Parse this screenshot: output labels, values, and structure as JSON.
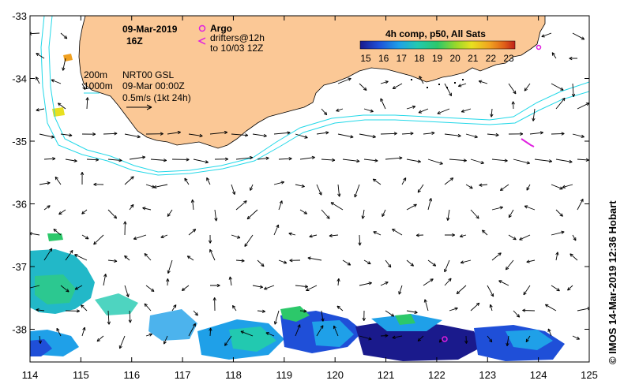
{
  "title": {
    "date": "09-Mar-2019",
    "time": "16Z"
  },
  "legend": {
    "argo_label": "Argo",
    "drifters_line1": "drifters@12h",
    "drifters_line2": "to 10/03 12Z",
    "composite_label": "4h comp, p50, All Sats",
    "colorbar_ticks": [
      "15",
      "16",
      "17",
      "18",
      "19",
      "20",
      "21",
      "22",
      "23"
    ],
    "colorbar_colors": [
      "#1a1a8c",
      "#1f4fd8",
      "#1fa0e8",
      "#22c9b0",
      "#2cc86a",
      "#9ad82a",
      "#e8e020",
      "#f0a020",
      "#e06018",
      "#c02018"
    ]
  },
  "isobaths": {
    "shallow": "200m",
    "deep": "1000m"
  },
  "current_info": {
    "product": "NRT00 GSL",
    "valid": "09-Mar 00:00Z",
    "scale": "0.5m/s (1kt 24h)"
  },
  "axes": {
    "lon_ticks": [
      "114",
      "115",
      "116",
      "117",
      "118",
      "119",
      "120",
      "121",
      "122",
      "123",
      "124",
      "125"
    ],
    "lat_ticks": [
      "-33",
      "-34",
      "-35",
      "-36",
      "-37",
      "-38"
    ]
  },
  "credit": "© IMOS 14-Mar-2019 12:36 Hobart",
  "colors": {
    "land": "#fbc896",
    "isobath": "#22d8e8",
    "argo": "#e020e0",
    "arrow": "#000000"
  }
}
